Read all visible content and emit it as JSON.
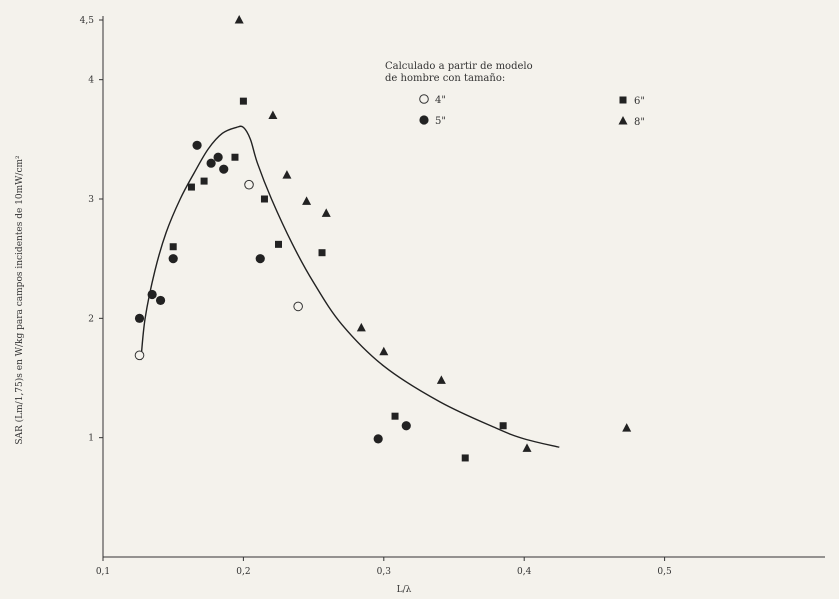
{
  "chart_data": {
    "type": "scatter",
    "title": "",
    "xlabel": "L/λ",
    "ylabel": "SAR (Lm/1,75)s en W/kg para campos incidentes de 10mW/cm²",
    "xlim": [
      0.1,
      0.6
    ],
    "ylim": [
      0,
      4.5
    ],
    "x_ticks": [
      "0,1",
      "0,2",
      "0,3",
      "0,4",
      "0,5"
    ],
    "y_ticks": [
      "1",
      "2",
      "3",
      "4",
      "4,5"
    ],
    "legend_title_lines": [
      "Calculado a partir de modelo",
      "de hombre con tamaño:"
    ],
    "series": [
      {
        "name": "4\"",
        "marker": "open-circle",
        "points": [
          [
            0.126,
            1.69
          ],
          [
            0.204,
            3.12
          ],
          [
            0.239,
            2.1
          ]
        ]
      },
      {
        "name": "5\"",
        "marker": "filled-circle",
        "points": [
          [
            0.126,
            2.0
          ],
          [
            0.135,
            2.2
          ],
          [
            0.141,
            2.15
          ],
          [
            0.15,
            2.5
          ],
          [
            0.167,
            3.45
          ],
          [
            0.182,
            3.35
          ],
          [
            0.186,
            3.25
          ],
          [
            0.177,
            3.3
          ],
          [
            0.212,
            2.5
          ],
          [
            0.296,
            0.99
          ],
          [
            0.316,
            1.1
          ]
        ]
      },
      {
        "name": "6\"",
        "marker": "filled-square",
        "points": [
          [
            0.15,
            2.6
          ],
          [
            0.163,
            3.1
          ],
          [
            0.172,
            3.15
          ],
          [
            0.194,
            3.35
          ],
          [
            0.2,
            3.82
          ],
          [
            0.215,
            3.0
          ],
          [
            0.225,
            2.62
          ],
          [
            0.256,
            2.55
          ],
          [
            0.308,
            1.18
          ],
          [
            0.358,
            0.83
          ],
          [
            0.385,
            1.1
          ]
        ]
      },
      {
        "name": "8\"",
        "marker": "filled-triangle",
        "points": [
          [
            0.197,
            4.5
          ],
          [
            0.221,
            3.7
          ],
          [
            0.231,
            3.2
          ],
          [
            0.245,
            2.98
          ],
          [
            0.259,
            2.88
          ],
          [
            0.284,
            1.92
          ],
          [
            0.3,
            1.72
          ],
          [
            0.341,
            1.48
          ],
          [
            0.402,
            0.91
          ],
          [
            0.473,
            1.08
          ]
        ]
      }
    ],
    "fit_curve": [
      [
        0.127,
        1.65
      ],
      [
        0.13,
        2.0
      ],
      [
        0.137,
        2.4
      ],
      [
        0.145,
        2.72
      ],
      [
        0.155,
        3.0
      ],
      [
        0.165,
        3.22
      ],
      [
        0.175,
        3.42
      ],
      [
        0.185,
        3.55
      ],
      [
        0.195,
        3.6
      ],
      [
        0.2,
        3.6
      ],
      [
        0.205,
        3.5
      ],
      [
        0.21,
        3.3
      ],
      [
        0.22,
        3.0
      ],
      [
        0.235,
        2.62
      ],
      [
        0.25,
        2.3
      ],
      [
        0.27,
        1.95
      ],
      [
        0.3,
        1.6
      ],
      [
        0.34,
        1.3
      ],
      [
        0.38,
        1.08
      ],
      [
        0.4,
        0.99
      ],
      [
        0.425,
        0.92
      ]
    ]
  }
}
